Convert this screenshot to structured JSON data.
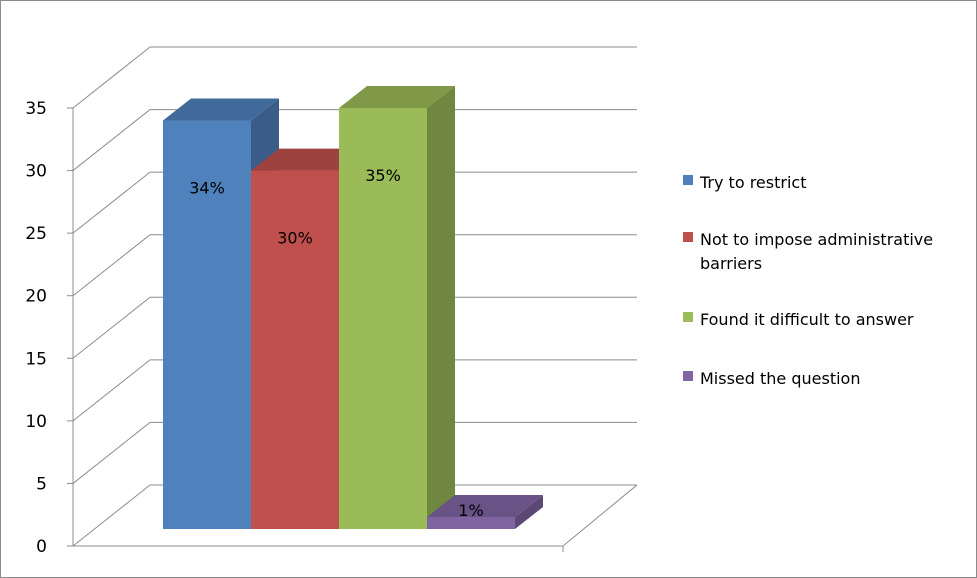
{
  "chart_data": {
    "type": "bar",
    "style": "3d-column",
    "categories": [
      "Try to restrict",
      "Not to impose administrative barriers",
      "Found it difficult to answer",
      "Missed the question"
    ],
    "series": [
      {
        "values": [
          34,
          30,
          35,
          1
        ],
        "data_labels": [
          "34%",
          "30%",
          "35%",
          "1%"
        ],
        "colors": [
          "#4F81BD",
          "#C0504D",
          "#9BBB59",
          "#8064A2"
        ]
      }
    ],
    "ylim": [
      0,
      35
    ],
    "yticks": [
      0,
      5,
      10,
      15,
      20,
      25,
      30,
      35
    ],
    "ytick_labels": [
      "0",
      "5",
      "10",
      "15",
      "20",
      "25",
      "30",
      "35"
    ],
    "grid": true,
    "legend": {
      "position": "right",
      "items": [
        {
          "label_lines": [
            "Try to restrict"
          ],
          "color": "#4F81BD"
        },
        {
          "label_lines": [
            "Not to impose administrative",
            "barriers"
          ],
          "color": "#C0504D"
        },
        {
          "label_lines": [
            "Found it difficult to answer"
          ],
          "color": "#9BBB59"
        },
        {
          "label_lines": [
            "Missed the question"
          ],
          "color": "#8064A2"
        }
      ]
    }
  }
}
